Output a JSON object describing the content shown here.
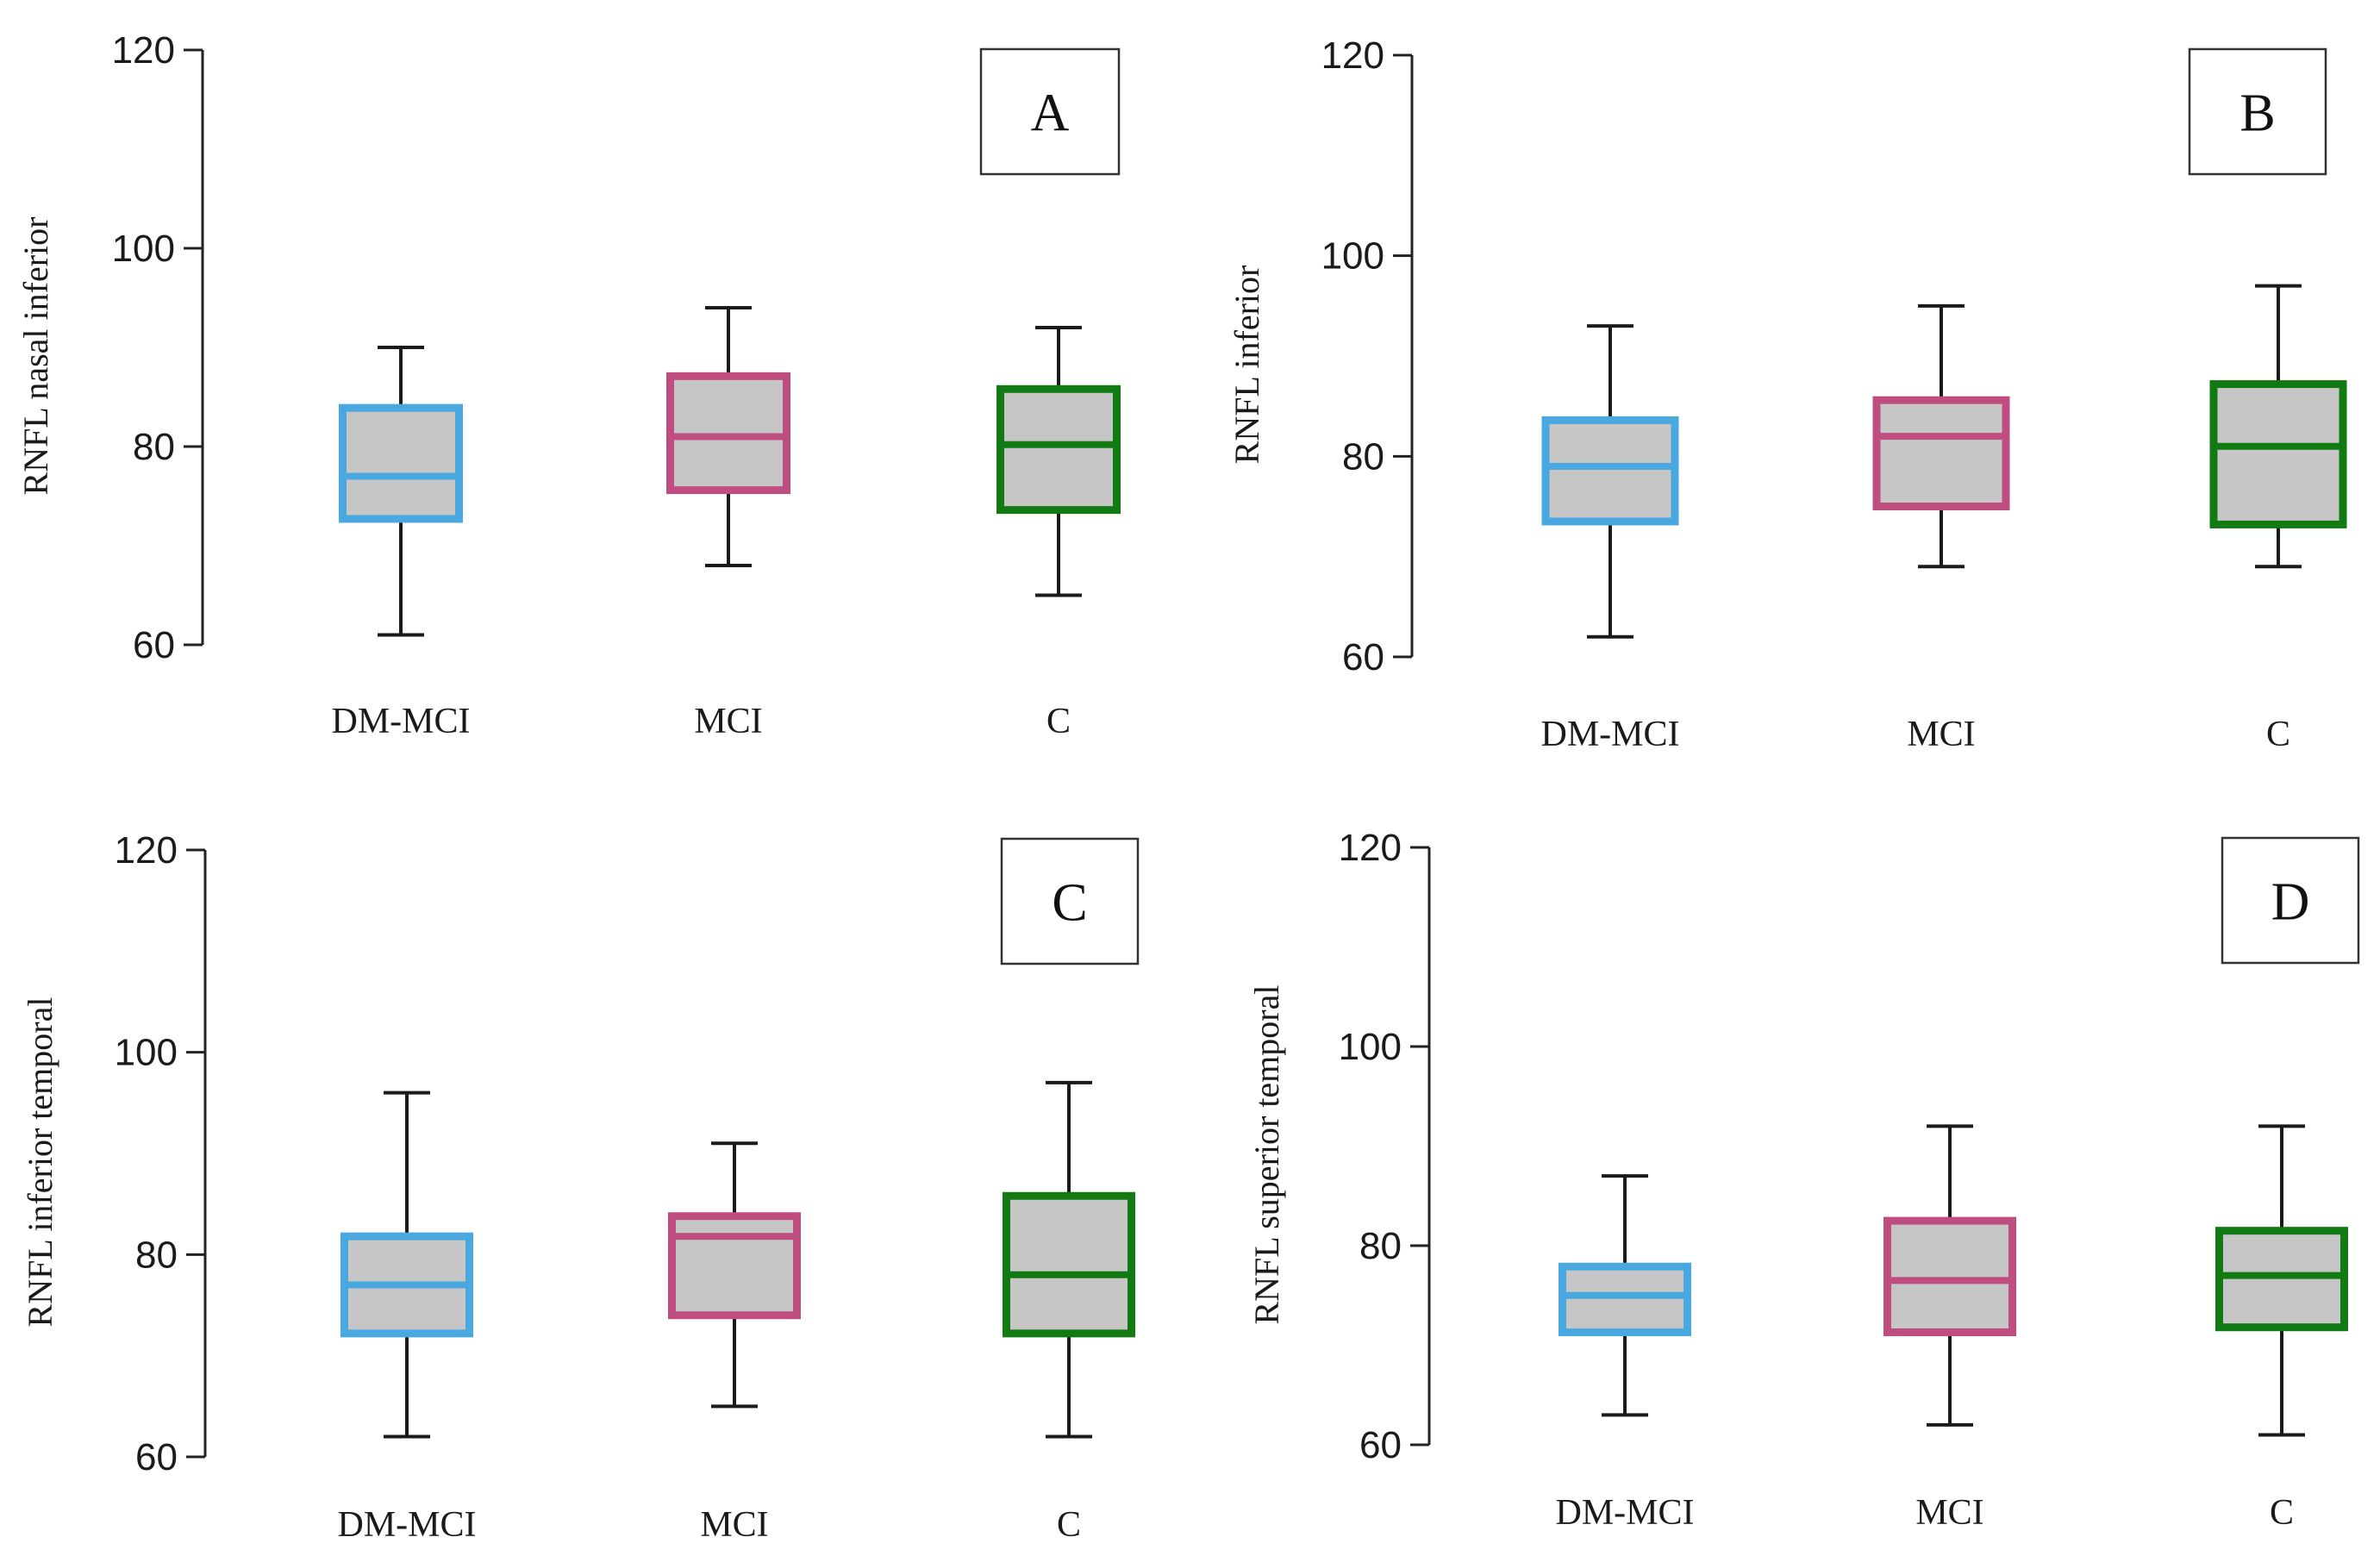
{
  "colors": {
    "DM-MCI": "#4aa8e0",
    "MCI": "#c04d80",
    "C": "#127a12",
    "box_fill": "#c6c6c6"
  },
  "chart_data": [
    {
      "type": "boxplot",
      "panel_label": "A",
      "ylabel": "RNFL nasal inferior",
      "ylim": [
        60,
        120
      ],
      "yticks": [
        60,
        80,
        100,
        120
      ],
      "categories": [
        "DM-MCI",
        "MCI",
        "C"
      ],
      "boxes": [
        {
          "group": "DM-MCI",
          "min": 61,
          "q1": 72.7,
          "median": 77,
          "q3": 83.9,
          "max": 90
        },
        {
          "group": "MCI",
          "min": 68,
          "q1": 75.6,
          "median": 81,
          "q3": 87.1,
          "max": 94
        },
        {
          "group": "C",
          "min": 65,
          "q1": 73.6,
          "median": 80.2,
          "q3": 85.8,
          "max": 92
        }
      ]
    },
    {
      "type": "boxplot",
      "panel_label": "B",
      "ylabel": "RNFL inferior",
      "ylim": [
        60,
        120
      ],
      "yticks": [
        60,
        80,
        100,
        120
      ],
      "categories": [
        "DM-MCI",
        "MCI",
        "C"
      ],
      "boxes": [
        {
          "group": "DM-MCI",
          "min": 62,
          "q1": 73.5,
          "median": 79,
          "q3": 83.6,
          "max": 93
        },
        {
          "group": "MCI",
          "min": 69,
          "q1": 75,
          "median": 82,
          "q3": 85.6,
          "max": 95
        },
        {
          "group": "C",
          "min": 69,
          "q1": 73.2,
          "median": 81,
          "q3": 87.2,
          "max": 97
        }
      ]
    },
    {
      "type": "boxplot",
      "panel_label": "C",
      "ylabel": "RNFL inferior temporal",
      "ylim": [
        60,
        120
      ],
      "yticks": [
        60,
        80,
        100,
        120
      ],
      "categories": [
        "DM-MCI",
        "MCI",
        "C"
      ],
      "boxes": [
        {
          "group": "DM-MCI",
          "min": 62,
          "q1": 72.2,
          "median": 77,
          "q3": 81.8,
          "max": 96
        },
        {
          "group": "MCI",
          "min": 65,
          "q1": 74,
          "median": 81.8,
          "q3": 83.8,
          "max": 91
        },
        {
          "group": "C",
          "min": 62,
          "q1": 72.2,
          "median": 78,
          "q3": 85.8,
          "max": 97
        }
      ]
    },
    {
      "type": "boxplot",
      "panel_label": "D",
      "ylabel": "RNFL superior temporal",
      "ylim": [
        60,
        120
      ],
      "yticks": [
        60,
        80,
        100,
        120
      ],
      "categories": [
        "DM-MCI",
        "MCI",
        "C"
      ],
      "boxes": [
        {
          "group": "DM-MCI",
          "min": 63,
          "q1": 71.3,
          "median": 75,
          "q3": 77.9,
          "max": 87
        },
        {
          "group": "MCI",
          "min": 62,
          "q1": 71.3,
          "median": 76.5,
          "q3": 82.5,
          "max": 92
        },
        {
          "group": "C",
          "min": 61,
          "q1": 71.8,
          "median": 77,
          "q3": 81.5,
          "max": 92
        }
      ]
    }
  ]
}
